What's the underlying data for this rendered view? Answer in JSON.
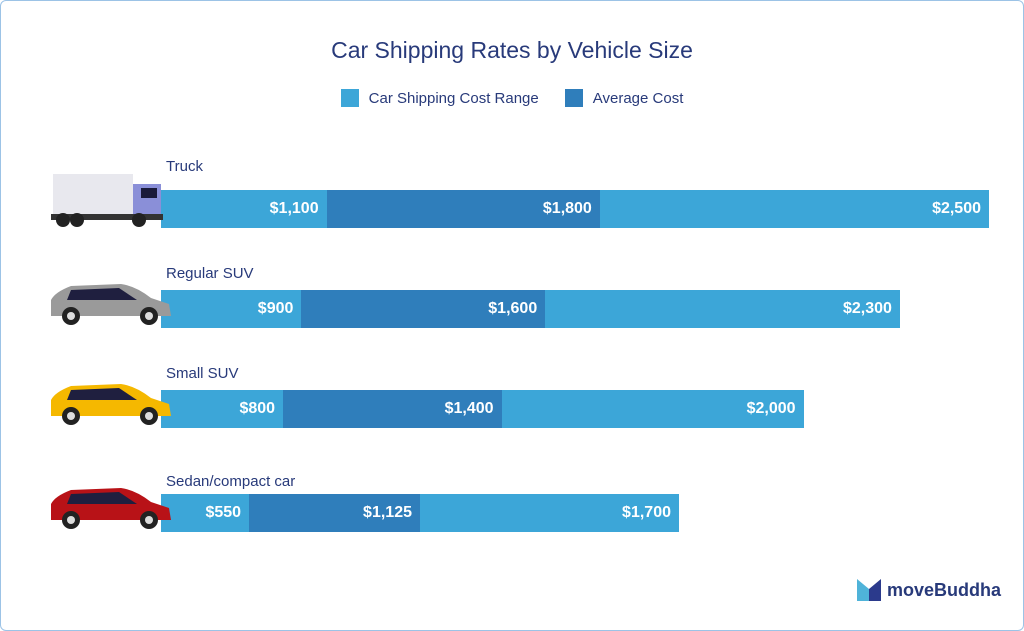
{
  "chart_data": {
    "type": "bar",
    "title": "Car Shipping Rates by Vehicle Size",
    "legend": [
      {
        "name": "Car Shipping Cost Range",
        "color": "#3ca6d8"
      },
      {
        "name": "Average Cost",
        "color": "#2f7ebb"
      }
    ],
    "legend_position": "top",
    "categories": [
      "Truck",
      "Regular SUV",
      "Small SUV",
      "Sedan/compact car"
    ],
    "vehicle_icons": [
      "truck-icon",
      "suv-icon",
      "small-suv-icon",
      "sedan-icon"
    ],
    "vehicle_colors": [
      "#e8e8ee",
      "#9a9a9a",
      "#f5b800",
      "#b81217"
    ],
    "series": [
      {
        "values": [
          1100,
          900,
          800,
          550
        ],
        "labels": [
          "$1,100",
          "$900",
          "$800",
          "$550"
        ]
      },
      {
        "values": [
          1800,
          1600,
          1400,
          1125
        ],
        "labels": [
          "$1,800",
          "$1,600",
          "$1,400",
          "$1,125"
        ]
      },
      {
        "values": [
          2500,
          2300,
          2000,
          1700
        ],
        "labels": [
          "$2,500",
          "$2,300",
          "$2,000",
          "$1,700"
        ]
      }
    ],
    "grid": false
  },
  "brand": {
    "logo_text": "moveBuddha"
  }
}
